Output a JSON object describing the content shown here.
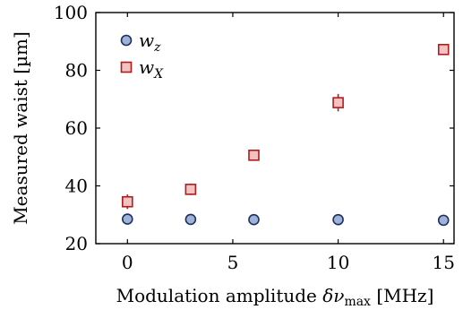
{
  "chart_data": {
    "type": "scatter",
    "xlabel": "Modulation amplitude δν_max [MHz]",
    "xlabel_parts": {
      "main": "Modulation amplitude ",
      "symbol": "δν",
      "subscript": "max",
      "unit": " [MHz]"
    },
    "ylabel": "Measured waist [µm]",
    "xlim": [
      -1.5,
      15.5
    ],
    "ylim": [
      20,
      100
    ],
    "x_ticks": [
      0,
      5,
      10,
      15
    ],
    "y_ticks": [
      20,
      40,
      60,
      80,
      100
    ],
    "grid": false,
    "legend_position": "top-left",
    "series": [
      {
        "name": "w_z",
        "label_main": "w",
        "label_sub": "z",
        "marker": "circle",
        "face_color": "#9db3d9",
        "edge_color": "#1e2f5c",
        "x": [
          0,
          3,
          6,
          10,
          15
        ],
        "y": [
          28.5,
          28.4,
          28.3,
          28.3,
          28.1
        ],
        "yerr": [
          0,
          0,
          0,
          0,
          0
        ]
      },
      {
        "name": "w_X",
        "label_main": "w",
        "label_sub": "X",
        "marker": "square",
        "face_color": "#f3c2c2",
        "edge_color": "#b01c1c",
        "x": [
          0,
          3,
          6,
          10,
          15
        ],
        "y": [
          34.5,
          38.8,
          50.6,
          68.8,
          87.2
        ],
        "yerr": [
          2.5,
          2.0,
          1.2,
          3.0,
          1.2
        ]
      }
    ]
  }
}
